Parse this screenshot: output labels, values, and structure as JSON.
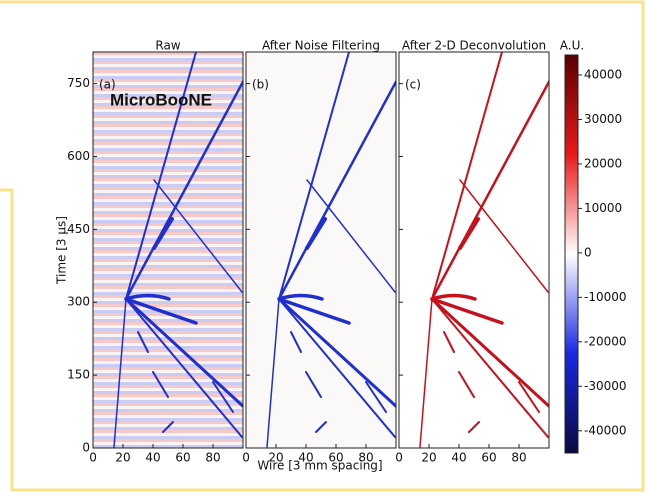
{
  "chart_data": {
    "type": "heatmap",
    "xlabel": "Wire [3 mm spacing]",
    "ylabel": "Time [3 μs]",
    "xlim": [
      0,
      100
    ],
    "xticks": [
      0,
      20,
      40,
      60,
      80
    ],
    "ylim": [
      0,
      815
    ],
    "yticks": [
      0,
      150,
      300,
      450,
      600,
      750
    ],
    "logo": "MicroBooNE",
    "panels": [
      {
        "title": "Raw",
        "tag": "(a)",
        "color": "#1f2fd0"
      },
      {
        "title": "After Noise Filtering",
        "tag": "(b)",
        "color": "#1f2fd0"
      },
      {
        "title": "After 2-D Deconvolution",
        "tag": "(c)",
        "color": "#c8101a"
      }
    ],
    "colorbar": {
      "title": "A.U.",
      "lim": [
        -45000,
        44500
      ],
      "ticks": [
        40000,
        30000,
        20000,
        10000,
        0,
        -10000,
        -20000,
        -30000,
        -40000
      ],
      "colors": [
        "#0a0a40",
        "#1a28e0",
        "#ffffff",
        "#e81a1a",
        "#5a0000"
      ]
    }
  }
}
